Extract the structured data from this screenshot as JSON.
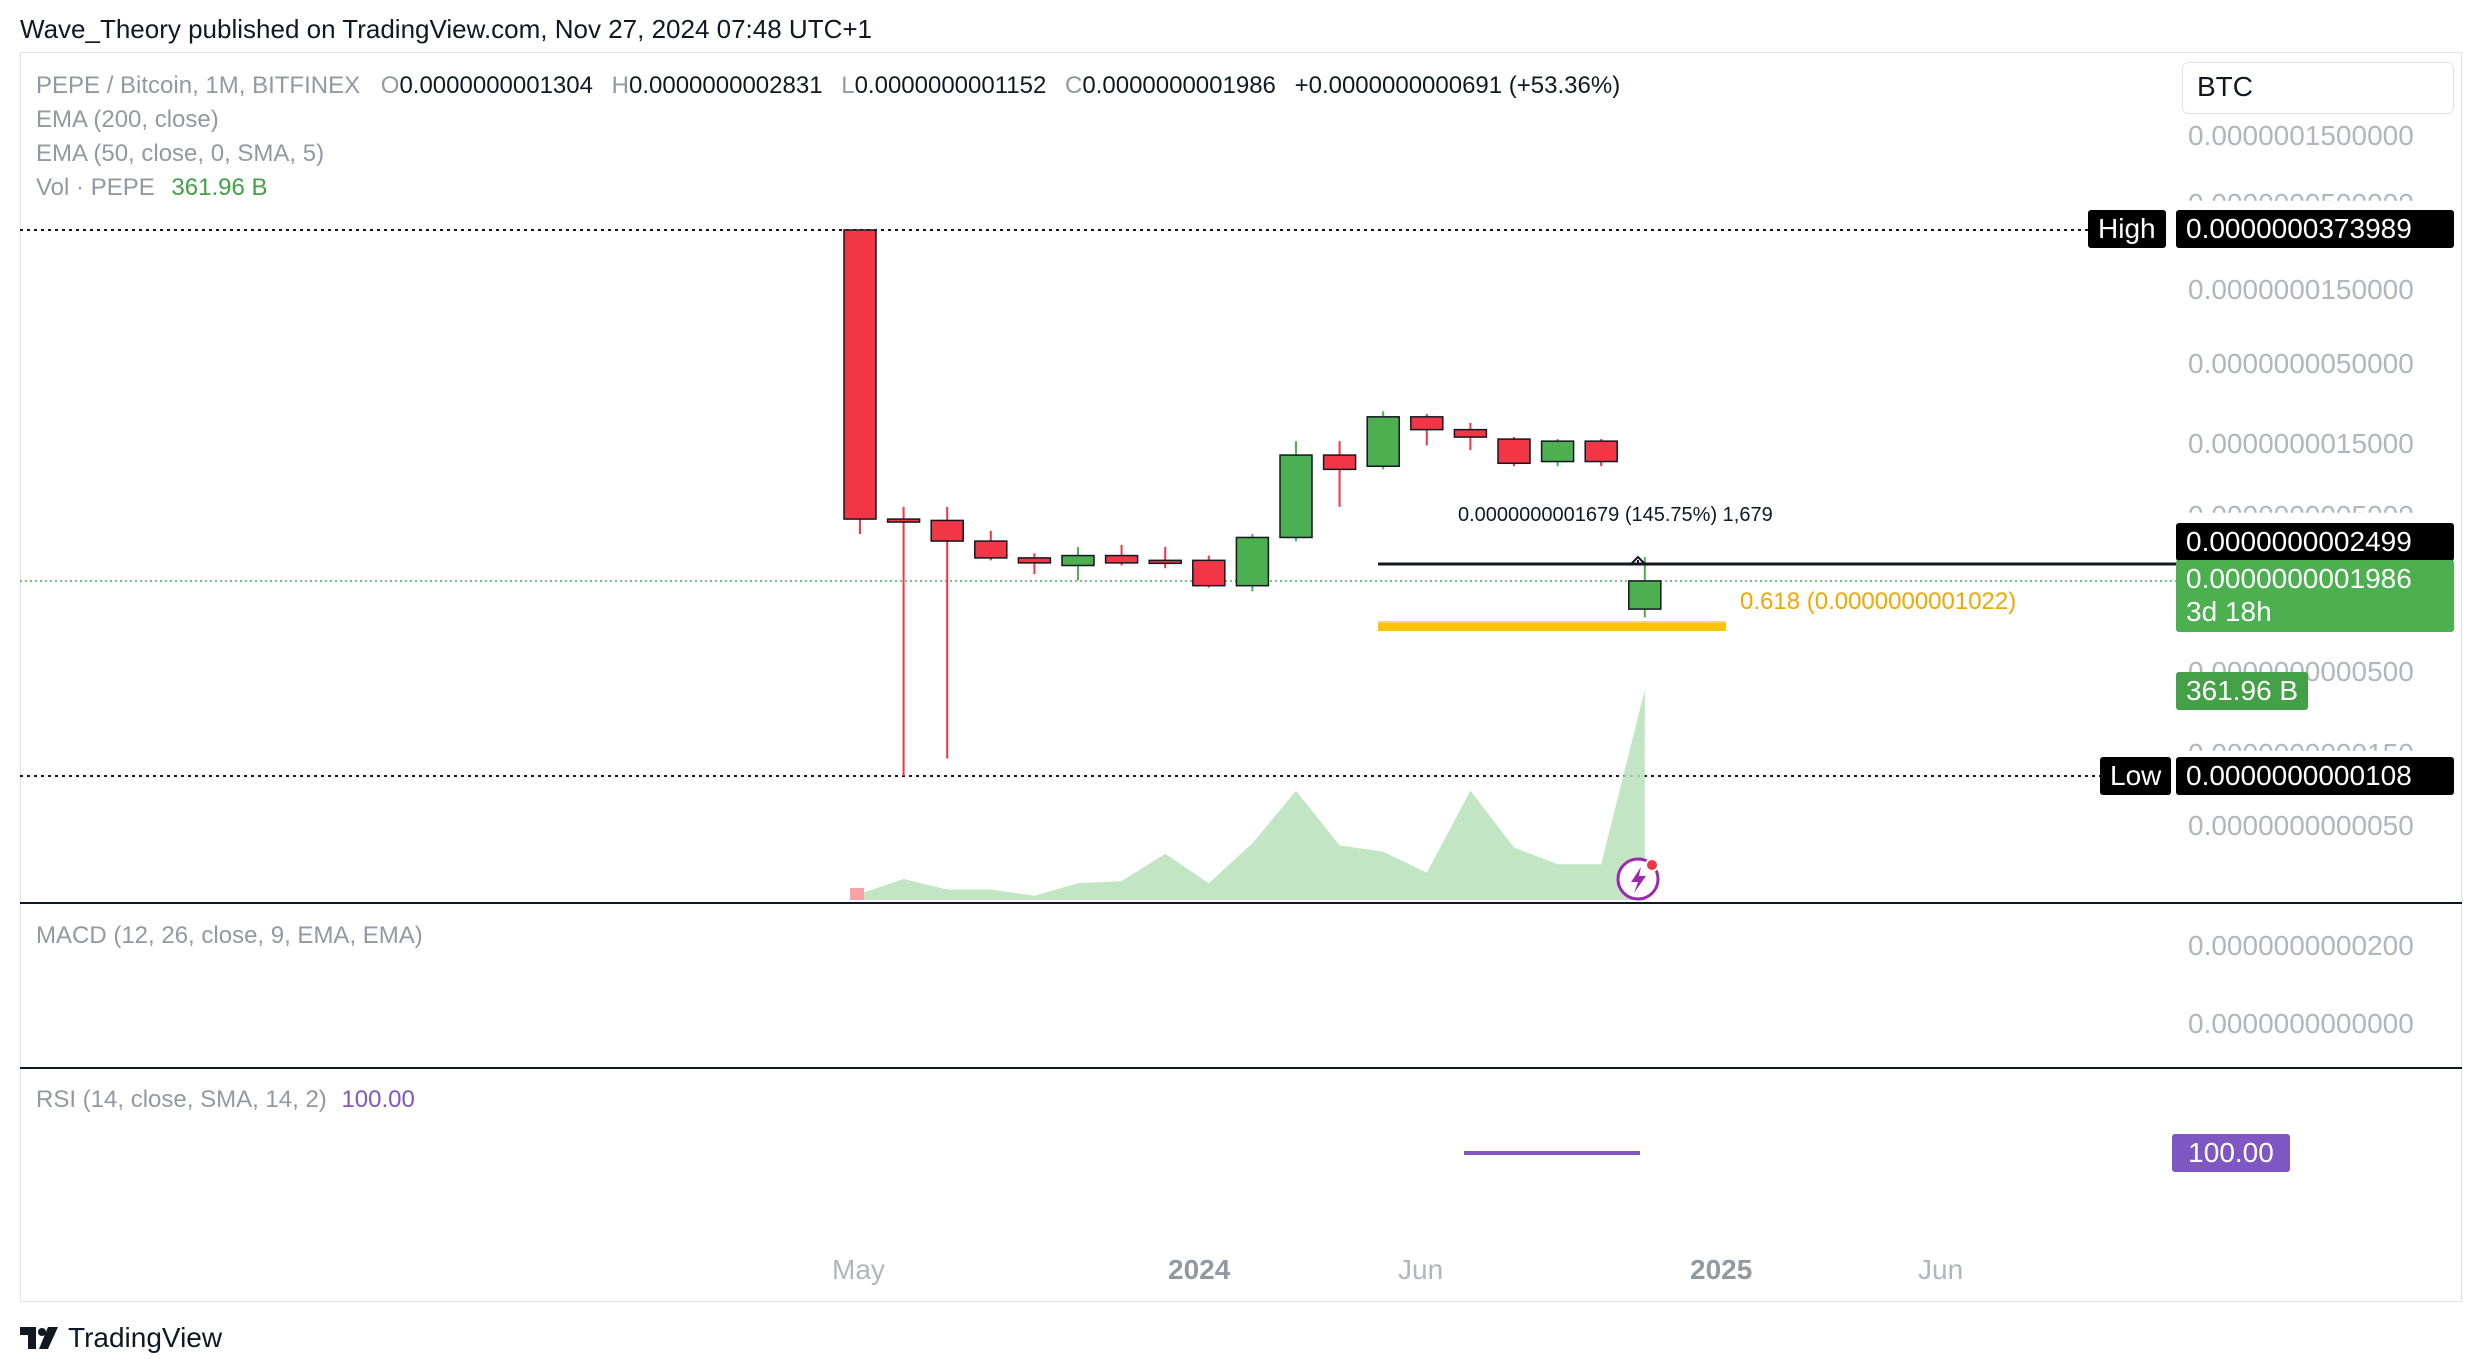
{
  "header": {
    "publish_line": "Wave_Theory published on TradingView.com, Nov 27, 2024 07:48 UTC+1"
  },
  "legend": {
    "symbol": "PEPE / Bitcoin, 1M, BITFINEX",
    "o_label": "O",
    "o_value": "0.0000000001304",
    "h_label": "H",
    "h_value": "0.0000000002831",
    "l_label": "L",
    "l_value": "0.0000000001152",
    "c_label": "C",
    "c_value": "0.0000000001986",
    "change": "+0.0000000000691 (+53.36%)",
    "ema200": "EMA (200, close)",
    "ema50": "EMA (50, close, 0, SMA, 5)",
    "vol_label": "Vol · PEPE",
    "vol_value": "361.96 B"
  },
  "currency": "BTC",
  "price_axis": {
    "ticks": [
      "0.0000001500000",
      "0.0000000500000",
      "0.0000000150000",
      "0.0000000050000",
      "0.0000000015000",
      "0.0000000005000",
      "0.0000000000500",
      "0.0000000000150",
      "0.0000000000050"
    ],
    "high_label": "High",
    "high_value": "0.0000000373989",
    "low_label": "Low",
    "low_value": "0.0000000000108",
    "measure_price": "0.0000000002499",
    "last_price": "0.0000000001986",
    "countdown": "3d 18h",
    "volume_tag": "361.96 B"
  },
  "annotations": {
    "measure": "0.0000000001679 (145.75%) 1,679",
    "fib": "0.618 (0.0000000001022)"
  },
  "macd": {
    "title": "MACD (12, 26, close, 9, EMA, EMA)",
    "ticks": [
      "0.0000000000200",
      "0.0000000000000"
    ]
  },
  "rsi": {
    "title": "RSI (14, close, SMA, 14, 2)",
    "value": "100.00",
    "tag": "100.00"
  },
  "time_axis": {
    "labels": [
      "May",
      "2024",
      "Jun",
      "2025",
      "Jun"
    ]
  },
  "brand": {
    "name": "TradingView"
  },
  "colors": {
    "up": "#4caf50",
    "down": "#f23645",
    "volume": "#b7e1b9",
    "fib": "#ffc107",
    "rsi": "#7e57c2",
    "text_muted": "#9598a1"
  },
  "chart_data": {
    "type": "candlestick",
    "symbol": "PEPE / Bitcoin",
    "interval": "1M",
    "scale": "log",
    "candles": [
      {
        "t": "2023-05",
        "o": 3.73989e-08,
        "h": 3.73989e-08,
        "l": 4e-10,
        "c": 5e-10
      },
      {
        "t": "2023-06",
        "o": 5e-10,
        "h": 6e-10,
        "l": 1.08e-11,
        "c": 4.9e-10
      },
      {
        "t": "2023-07",
        "o": 4.9e-10,
        "h": 6e-10,
        "l": 1.4e-11,
        "c": 3.6e-10
      },
      {
        "t": "2023-08",
        "o": 3.6e-10,
        "h": 4.2e-10,
        "l": 2.7e-10,
        "c": 2.8e-10
      },
      {
        "t": "2023-09",
        "o": 2.8e-10,
        "h": 3e-10,
        "l": 2.2e-10,
        "c": 2.6e-10
      },
      {
        "t": "2023-10",
        "o": 2.5e-10,
        "h": 3.3e-10,
        "l": 2e-10,
        "c": 2.9e-10
      },
      {
        "t": "2023-11",
        "o": 2.9e-10,
        "h": 3.4e-10,
        "l": 2.5e-10,
        "c": 2.6e-10
      },
      {
        "t": "2023-12",
        "o": 2.7e-10,
        "h": 3.3e-10,
        "l": 2.4e-10,
        "c": 2.6e-10
      },
      {
        "t": "2024-01",
        "o": 2.7e-10,
        "h": 2.9e-10,
        "l": 1.8e-10,
        "c": 1.85e-10
      },
      {
        "t": "2024-02",
        "o": 1.85e-10,
        "h": 4e-10,
        "l": 1.7e-10,
        "c": 3.8e-10
      },
      {
        "t": "2024-03",
        "o": 3.8e-10,
        "h": 1.6e-09,
        "l": 3.6e-10,
        "c": 1.3e-09
      },
      {
        "t": "2024-04",
        "o": 1.3e-09,
        "h": 1.6e-09,
        "l": 6e-10,
        "c": 1.05e-09
      },
      {
        "t": "2024-05",
        "o": 1.1e-09,
        "h": 2.5e-09,
        "l": 1.05e-09,
        "c": 2.3e-09
      },
      {
        "t": "2024-06",
        "o": 2.3e-09,
        "h": 2.4e-09,
        "l": 1.5e-09,
        "c": 1.9e-09
      },
      {
        "t": "2024-07",
        "o": 1.9e-09,
        "h": 2.1e-09,
        "l": 1.4e-09,
        "c": 1.7e-09
      },
      {
        "t": "2024-08",
        "o": 1.65e-09,
        "h": 1.7e-09,
        "l": 1.1e-09,
        "c": 1.15e-09
      },
      {
        "t": "2024-09",
        "o": 1.18e-09,
        "h": 1.65e-09,
        "l": 1.1e-09,
        "c": 1.6e-09
      },
      {
        "t": "2024-10",
        "o": 1.6e-09,
        "h": 1.65e-09,
        "l": 1.1e-09,
        "c": 1.18e-09
      },
      {
        "t": "2024-11",
        "o": 1.304e-10,
        "h": 2.831e-10,
        "l": 1.152e-10,
        "c": 1.986e-10
      }
    ],
    "volume_relative": [
      0.03,
      0.1,
      0.05,
      0.05,
      0.02,
      0.08,
      0.09,
      0.22,
      0.08,
      0.27,
      0.52,
      0.26,
      0.23,
      0.13,
      0.52,
      0.25,
      0.17,
      0.17,
      1.0
    ],
    "high": "0.0000000373989",
    "low": "0.0000000000108",
    "rsi_value": 100.0
  }
}
